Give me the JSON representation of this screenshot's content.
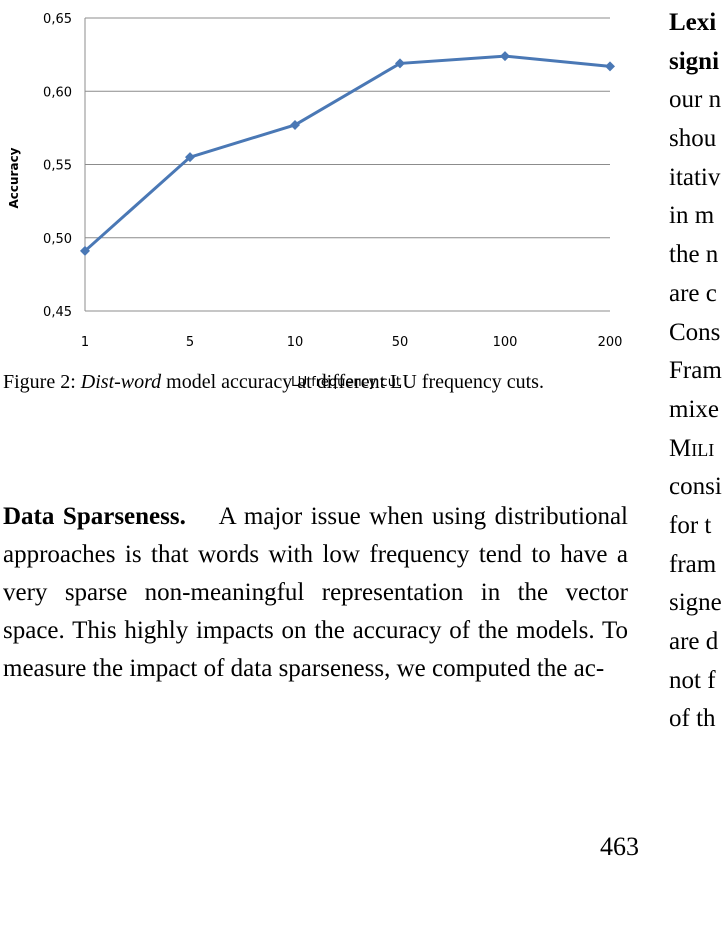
{
  "chart_data": {
    "type": "line",
    "categories": [
      "1",
      "5",
      "10",
      "50",
      "100",
      "200"
    ],
    "values": [
      0.491,
      0.555,
      0.577,
      0.619,
      0.624,
      0.617
    ],
    "ylabel": "Accuracy",
    "xlabel": "LU frequency cut",
    "ylim": [
      0.45,
      0.65
    ],
    "yticks": [
      "0,45",
      "0,50",
      "0,55",
      "0,60",
      "0,65"
    ],
    "grid": "horizontal",
    "line_color": "#4a78b5"
  },
  "caption": {
    "prefix": "Figure 2: ",
    "italic": "Dist-word",
    "rest": " model accuracy at different LU frequency cuts."
  },
  "left_para": {
    "heading": "Data Sparseness.",
    "text": "A major issue when using distributional approaches is that words with low frequency tend to have a very sparse non-meaningful representation in the vector space. This highly impacts on the accuracy of the models. To measure the impact of data sparseness, we computed the ac-"
  },
  "right_col": {
    "lines": [
      "Lexi",
      "signi",
      "our n",
      "shou",
      "itativ",
      "in m",
      "the n",
      "are c",
      "Cons",
      "Fram",
      "mixe",
      "Mili",
      "consi",
      "for t",
      "fram",
      "signe",
      "are d",
      "not f",
      "of th"
    ]
  },
  "page_number": "463"
}
